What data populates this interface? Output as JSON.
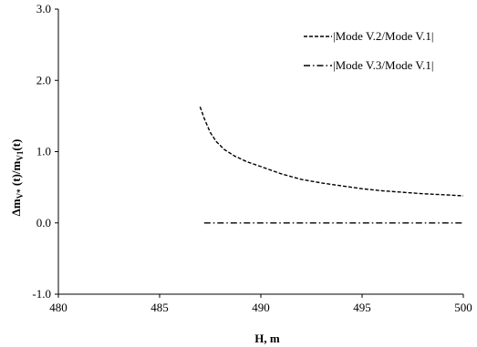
{
  "chart_data": {
    "type": "line",
    "xlabel": "H, m",
    "ylabel": {
      "prefix": "Δm",
      "sub1": "V*",
      "middle": " (t)/m",
      "sub2": "V1",
      "suffix": "(t)"
    },
    "xlim": [
      480,
      500
    ],
    "ylim": [
      -1.0,
      3.0
    ],
    "xticks": [
      "480",
      "485",
      "490",
      "495",
      "500"
    ],
    "yticks": [
      "-1.0",
      "0.0",
      "1.0",
      "2.0",
      "3.0"
    ],
    "grid": false,
    "legend_position": "top-right",
    "series": [
      {
        "name": "|Mode V.2/Mode V.1|",
        "style": "dashed",
        "color": "#000000",
        "x": [
          487.0,
          487.2,
          487.5,
          487.8,
          488.2,
          488.7,
          489.3,
          490.0,
          491.0,
          492.0,
          493.0,
          494.0,
          495.0,
          496.0,
          497.0,
          498.0,
          499.0,
          500.0
        ],
        "y": [
          1.63,
          1.47,
          1.27,
          1.14,
          1.03,
          0.94,
          0.86,
          0.79,
          0.69,
          0.61,
          0.56,
          0.52,
          0.48,
          0.45,
          0.43,
          0.41,
          0.395,
          0.38
        ]
      },
      {
        "name": "|Mode V.3/Mode V.1|",
        "style": "dash-dot",
        "color": "#000000",
        "x": [
          487.2,
          500.0
        ],
        "y": [
          0.0,
          0.0
        ]
      }
    ]
  }
}
